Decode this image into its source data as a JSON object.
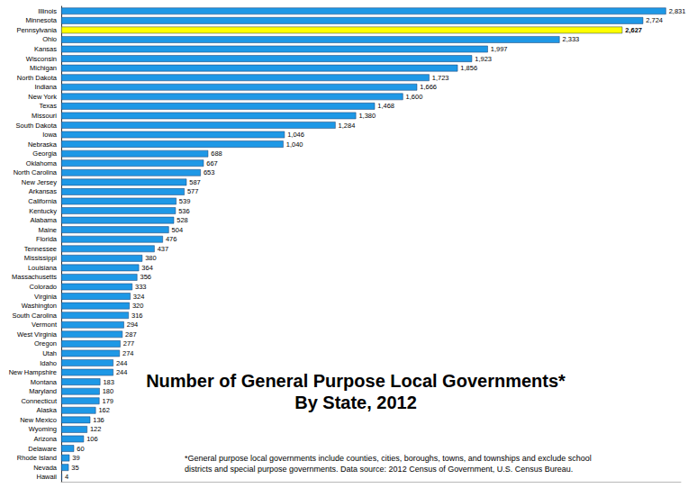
{
  "chart_data": {
    "type": "bar",
    "orientation": "horizontal",
    "title": "Number of General Purpose Local Governments*",
    "subtitle": "By State, 2012",
    "annotation": "*General purpose local governments include counties, cities, boroughs, towns, and townships and exclude school\ndistricts and special purpose governments. Data source: 2012 Census of Government, U.S. Census Bureau.",
    "categories": [
      "Illinois",
      "Minnesota",
      "Pennsylvania",
      "Ohio",
      "Kansas",
      "Wisconsin",
      "Michigan",
      "North Dakota",
      "Indiana",
      "New York",
      "Texas",
      "Missouri",
      "South Dakota",
      "Iowa",
      "Nebraska",
      "Georgia",
      "Oklahoma",
      "North Carolina",
      "New Jersey",
      "Arkansas",
      "California",
      "Kentucky",
      "Alabama",
      "Maine",
      "Florida",
      "Tennessee",
      "Mississippi",
      "Louisiana",
      "Massachusetts",
      "Colorado",
      "Virginia",
      "Washington",
      "South Carolina",
      "Vermont",
      "West Virginia",
      "Oregon",
      "Utah",
      "Idaho",
      "New Hampshire",
      "Montana",
      "Maryland",
      "Connecticut",
      "Alaska",
      "New Mexico",
      "Wyoming",
      "Arizona",
      "Delaware",
      "Rhode Island",
      "Nevada",
      "Hawaii"
    ],
    "values": [
      2831,
      2724,
      2627,
      2333,
      1997,
      1923,
      1856,
      1723,
      1666,
      1600,
      1468,
      1380,
      1284,
      1046,
      1040,
      688,
      667,
      653,
      587,
      577,
      539,
      536,
      528,
      504,
      476,
      437,
      380,
      364,
      356,
      333,
      324,
      320,
      316,
      294,
      287,
      277,
      274,
      244,
      244,
      183,
      180,
      179,
      162,
      136,
      122,
      106,
      60,
      39,
      35,
      4
    ],
    "value_labels": [
      "2,831",
      "2,724",
      "2,627",
      "2,333",
      "1,997",
      "1,923",
      "1,856",
      "1,723",
      "1,666",
      "1,600",
      "1,468",
      "1,380",
      "1,284",
      "1,046",
      "1,040",
      "688",
      "667",
      "653",
      "587",
      "577",
      "539",
      "536",
      "528",
      "504",
      "476",
      "437",
      "380",
      "364",
      "356",
      "333",
      "324",
      "320",
      "316",
      "294",
      "287",
      "277",
      "274",
      "244",
      "244",
      "183",
      "180",
      "179",
      "162",
      "136",
      "122",
      "106",
      "60",
      "39",
      "35",
      "4"
    ],
    "color": "#1e98e6",
    "colors": [
      "#1e98e6",
      "#1e98e6",
      "#ffff00",
      "#1e98e6",
      "#1e98e6",
      "#1e98e6",
      "#1e98e6",
      "#1e98e6",
      "#1e98e6",
      "#1e98e6",
      "#1e98e6",
      "#1e98e6",
      "#1e98e6",
      "#1e98e6",
      "#1e98e6",
      "#1e98e6",
      "#1e98e6",
      "#1e98e6",
      "#1e98e6",
      "#1e98e6",
      "#1e98e6",
      "#1e98e6",
      "#1e98e6",
      "#1e98e6",
      "#1e98e6",
      "#1e98e6",
      "#1e98e6",
      "#1e98e6",
      "#1e98e6",
      "#1e98e6",
      "#1e98e6",
      "#1e98e6",
      "#1e98e6",
      "#1e98e6",
      "#1e98e6",
      "#1e98e6",
      "#1e98e6",
      "#1e98e6",
      "#1e98e6",
      "#1e98e6",
      "#1e98e6",
      "#1e98e6",
      "#1e98e6",
      "#1e98e6",
      "#1e98e6",
      "#1e98e6",
      "#1e98e6",
      "#1e98e6",
      "#1e98e6",
      "#1e98e6"
    ],
    "xlim": [
      0,
      2900
    ],
    "xticks": [
      0,
      2900
    ],
    "grid": false,
    "data_labels": true,
    "tick_labels": "y"
  }
}
